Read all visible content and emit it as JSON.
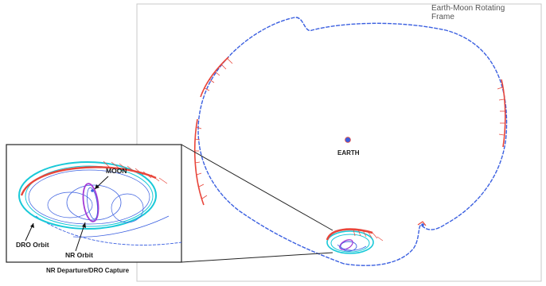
{
  "frame_label": {
    "line1": "Earth-Moon Rotating",
    "line2": "Frame"
  },
  "labels": {
    "earth": "EARTH",
    "moon": "MOON",
    "dro_orbit": "DRO Orbit",
    "nr_orbit": "NR Orbit",
    "departure_capture": "NR Departure/DRO Capture"
  },
  "colors": {
    "trajectory": "#3a5fe0",
    "thrust_arcs": "#e8453a",
    "dro": "#19c9d8",
    "nr_orbit": "#a23bd6",
    "earth": "#3a5fe0",
    "frame_border": "#c8c8c8",
    "inset_border": "#222222"
  }
}
